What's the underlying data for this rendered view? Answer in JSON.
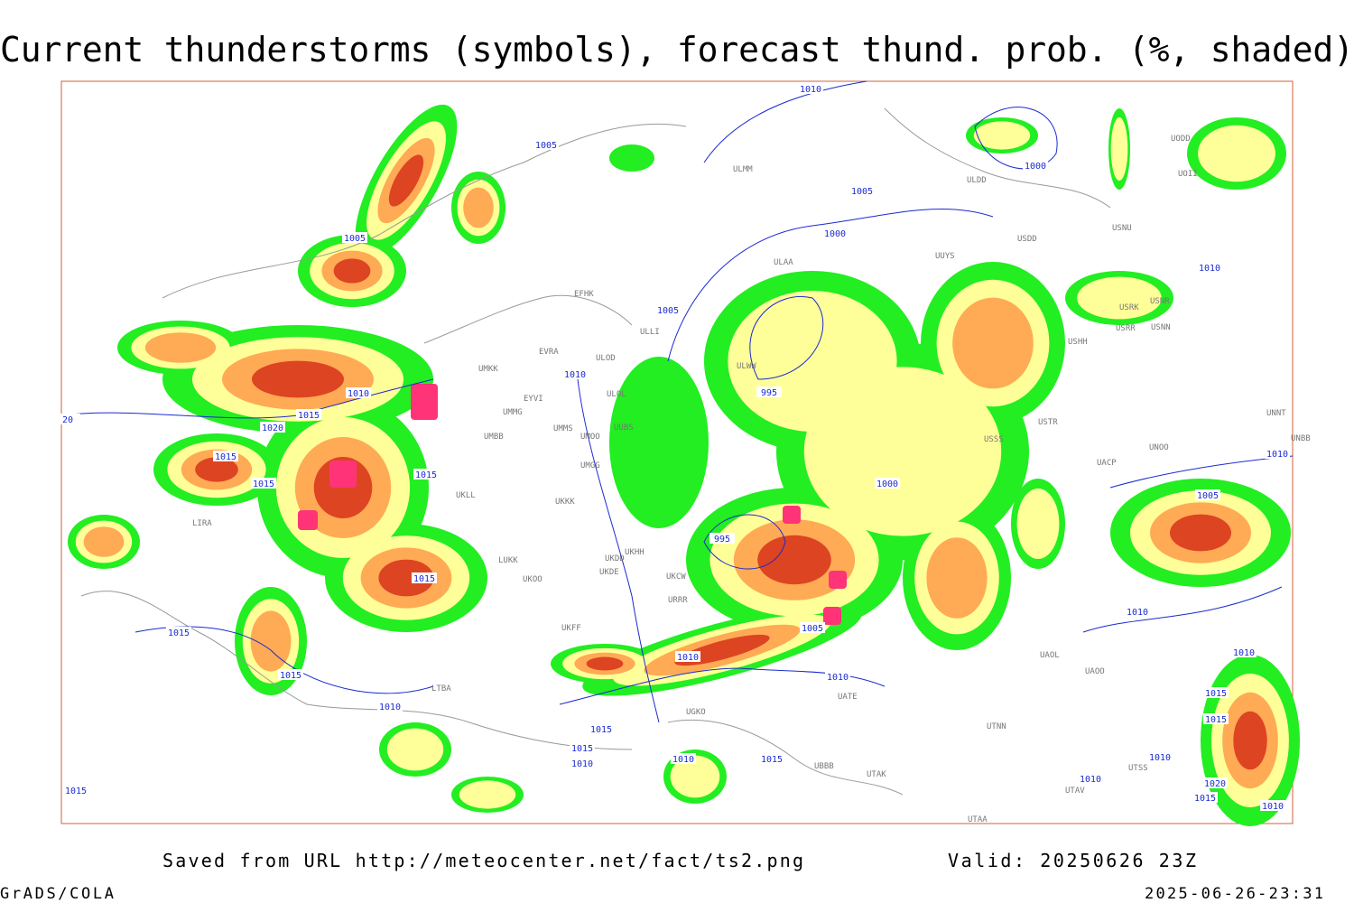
{
  "title": "Current thunderstorms (symbols), forecast thund. prob. (%, shaded)",
  "footer": {
    "source": "Saved from URL http://meteocenter.net/fact/ts2.png",
    "valid": "Valid: 20250626 23Z",
    "software": "GrADS/COLA",
    "timestamp": "2025-06-26-23:31"
  },
  "map": {
    "isobar_labels": [
      1010,
      1005,
      1000,
      1005,
      1005,
      1000,
      1010,
      1005,
      995,
      1010,
      1010,
      1015,
      1020,
      20,
      1015,
      1015,
      1015,
      1000,
      1010,
      1005,
      995,
      1015,
      1010,
      1005,
      1015,
      1010,
      1010,
      1010,
      1015,
      1015,
      1010,
      1015,
      1015,
      1015,
      1010,
      1015,
      1010,
      1010,
      1010,
      1020,
      1015,
      1015,
      1010
    ],
    "stations": [
      "ULMM",
      "ULDD",
      "USDD",
      "USNU",
      "UUYS",
      "ULAA",
      "EFHK",
      "USRK",
      "USNR",
      "USRR",
      "USNN",
      "USHH",
      "ULLI",
      "ULOD",
      "UMKK",
      "EVRA",
      "ULWW",
      "ULOL",
      "EYVI",
      "UMMG",
      "UMBB",
      "UMMS",
      "UMOO",
      "UUBS",
      "USTR",
      "USSS",
      "UNNT",
      "UNBB",
      "UNOO",
      "UACP",
      "UMGG",
      "UKLL",
      "UKKK",
      "UKHH",
      "UKDD",
      "UKDE",
      "LUKK",
      "UKOO",
      "UKCW",
      "URRR",
      "UKFF",
      "UATE",
      "UTNN",
      "UGKO",
      "UBBB",
      "UTAK",
      "UTAA",
      "UTSS",
      "UTAV",
      "UAOO",
      "UAOL",
      "LIRA",
      "LTBA",
      "UOII",
      "UODD"
    ]
  }
}
